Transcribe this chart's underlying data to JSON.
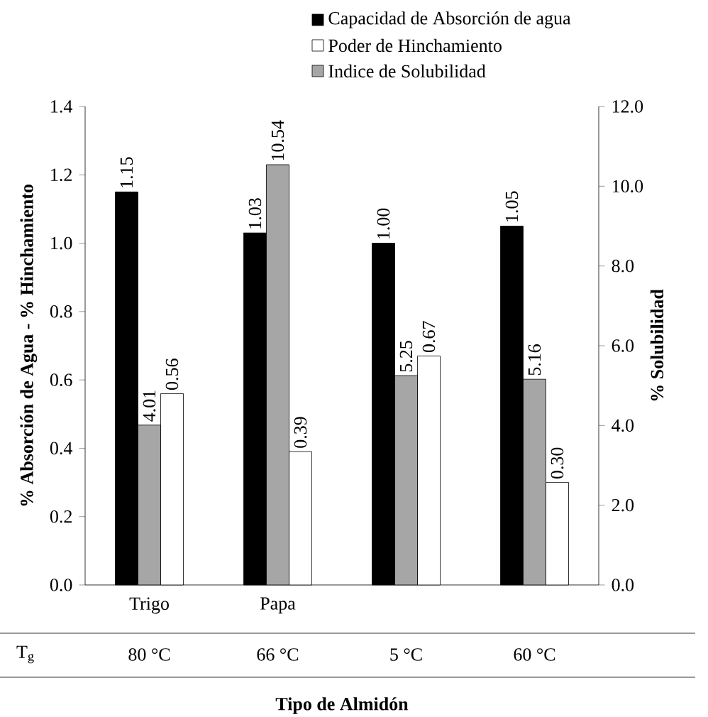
{
  "chart_data": {
    "type": "bar",
    "categories": [
      "Trigo",
      "Papa",
      null,
      null
    ],
    "series": [
      {
        "name": "Capacidad de Absorción de agua",
        "color": "#000000",
        "values": [
          1.15,
          1.03,
          1.0,
          1.05
        ],
        "value_labels": [
          "1.15",
          "1.03",
          "1.00",
          "1.05"
        ]
      },
      {
        "name": "Poder de Hinchamiento",
        "color": "#ffffff",
        "values": [
          0.56,
          0.39,
          0.67,
          0.3
        ],
        "value_labels": [
          "0.56",
          "0.39",
          "0.67",
          "0.30"
        ]
      },
      {
        "name": "Indice de Solubilidad",
        "color": "#a6a6a6",
        "axis": "y2",
        "values": [
          4.01,
          10.54,
          5.25,
          5.16
        ],
        "value_labels": [
          "4.01",
          "10.54",
          "5.25",
          "5.16"
        ]
      }
    ],
    "xlabel": "Tipo de Almidón",
    "ylabel": "% Absorción de Agua - % Hinchamiento",
    "y2label": "% Solubilidad",
    "ylim": [
      0,
      1.4
    ],
    "yticks": [
      {
        "value": 0,
        "label": "0.0"
      },
      {
        "value": 0.2,
        "label": "0.2"
      },
      {
        "value": 0.4,
        "label": "0.4"
      },
      {
        "value": 0.6,
        "label": "0.6"
      },
      {
        "value": 0.8,
        "label": "0.8"
      },
      {
        "value": 1.0,
        "label": "1.0"
      },
      {
        "value": 1.2,
        "label": "1.2"
      },
      {
        "value": 1.4,
        "label": "1.4"
      }
    ],
    "y2lim": [
      0,
      12
    ],
    "y2ticks": [
      {
        "value": 0,
        "label": "0.0"
      },
      {
        "value": 2,
        "label": "2.0"
      },
      {
        "value": 4,
        "label": "4.0"
      },
      {
        "value": 6,
        "label": "6.0"
      },
      {
        "value": 8,
        "label": "8.0"
      },
      {
        "value": 10,
        "label": "10.0"
      },
      {
        "value": 12,
        "label": "12.0"
      }
    ],
    "annotations": [
      "T$_{g}$",
      "80 °C",
      "66 °C",
      "5 °C",
      "60 °C"
    ],
    "legend": "top",
    "grid": false
  }
}
